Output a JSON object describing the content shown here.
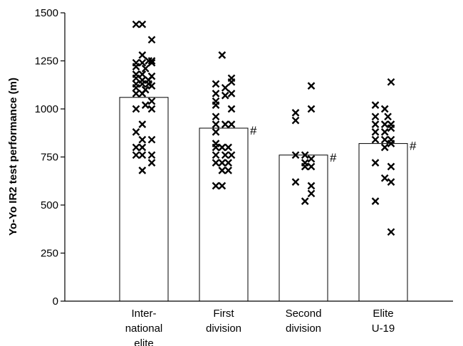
{
  "chart_data": {
    "type": "bar",
    "ylabel": "Yo-Yo IR2 test performance (m)",
    "ylim": [
      0,
      1500
    ],
    "yticks": [
      0,
      250,
      500,
      750,
      1000,
      1250,
      1500
    ],
    "grid": false,
    "marker_color": "#000000",
    "categories": [
      {
        "lines": [
          "Inter-",
          "national",
          "elite"
        ]
      },
      {
        "lines": [
          "First",
          "division"
        ]
      },
      {
        "lines": [
          "Second",
          "division"
        ]
      },
      {
        "lines": [
          "Elite",
          "U-19"
        ]
      }
    ],
    "values": [
      1060,
      900,
      760,
      820
    ],
    "significance": [
      "",
      "#",
      "#",
      "#"
    ],
    "points": [
      [
        [
          -0.25,
          1440
        ],
        [
          -0.05,
          1440
        ],
        [
          0.25,
          1360
        ],
        [
          -0.05,
          1280
        ],
        [
          0.15,
          1250
        ],
        [
          0.25,
          1250
        ],
        [
          -0.25,
          1240
        ],
        [
          -0.05,
          1240
        ],
        [
          0.25,
          1240
        ],
        [
          -0.25,
          1220
        ],
        [
          0.05,
          1210
        ],
        [
          -0.25,
          1180
        ],
        [
          -0.05,
          1180
        ],
        [
          0.25,
          1170
        ],
        [
          -0.25,
          1160
        ],
        [
          -0.05,
          1150
        ],
        [
          0.15,
          1150
        ],
        [
          -0.25,
          1130
        ],
        [
          -0.05,
          1130
        ],
        [
          0.15,
          1130
        ],
        [
          0.25,
          1120
        ],
        [
          -0.25,
          1110
        ],
        [
          0.05,
          1100
        ],
        [
          -0.25,
          1080
        ],
        [
          -0.05,
          1080
        ],
        [
          0.25,
          1040
        ],
        [
          0.05,
          1020
        ],
        [
          -0.25,
          1000
        ],
        [
          0.25,
          1000
        ],
        [
          -0.05,
          920
        ],
        [
          -0.25,
          880
        ],
        [
          0.25,
          840
        ],
        [
          -0.05,
          840
        ],
        [
          -0.25,
          800
        ],
        [
          -0.05,
          800
        ],
        [
          -0.25,
          760
        ],
        [
          -0.05,
          760
        ],
        [
          0.25,
          760
        ],
        [
          0.25,
          720
        ],
        [
          -0.05,
          680
        ]
      ],
      [
        [
          -0.05,
          1280
        ],
        [
          0.25,
          1160
        ],
        [
          0.25,
          1140
        ],
        [
          -0.25,
          1130
        ],
        [
          0.05,
          1110
        ],
        [
          -0.25,
          1080
        ],
        [
          0.25,
          1080
        ],
        [
          0.05,
          1070
        ],
        [
          -0.25,
          1040
        ],
        [
          -0.25,
          1020
        ],
        [
          0.25,
          1000
        ],
        [
          -0.25,
          960
        ],
        [
          -0.25,
          920
        ],
        [
          0.05,
          920
        ],
        [
          0.25,
          920
        ],
        [
          -0.25,
          880
        ],
        [
          -0.25,
          820
        ],
        [
          -0.25,
          800
        ],
        [
          -0.05,
          800
        ],
        [
          0.15,
          800
        ],
        [
          -0.25,
          760
        ],
        [
          0.05,
          760
        ],
        [
          0.25,
          760
        ],
        [
          -0.25,
          720
        ],
        [
          -0.05,
          720
        ],
        [
          0.15,
          720
        ],
        [
          -0.05,
          680
        ],
        [
          0.15,
          680
        ],
        [
          -0.25,
          600
        ],
        [
          -0.05,
          600
        ]
      ],
      [
        [
          0.25,
          1120
        ],
        [
          -0.25,
          980
        ],
        [
          0.25,
          1000
        ],
        [
          -0.25,
          940
        ],
        [
          -0.25,
          760
        ],
        [
          0.05,
          760
        ],
        [
          0.25,
          740
        ],
        [
          0.05,
          720
        ],
        [
          0.05,
          700
        ],
        [
          0.25,
          700
        ],
        [
          -0.25,
          620
        ],
        [
          0.25,
          600
        ],
        [
          0.25,
          560
        ],
        [
          0.05,
          520
        ]
      ],
      [
        [
          0.25,
          1140
        ],
        [
          -0.25,
          1020
        ],
        [
          0.05,
          1000
        ],
        [
          -0.25,
          960
        ],
        [
          0.15,
          960
        ],
        [
          -0.25,
          920
        ],
        [
          0.05,
          920
        ],
        [
          0.25,
          920
        ],
        [
          -0.25,
          880
        ],
        [
          0.05,
          880
        ],
        [
          0.25,
          900
        ],
        [
          -0.25,
          840
        ],
        [
          0.05,
          840
        ],
        [
          0.25,
          840
        ],
        [
          0.25,
          820
        ],
        [
          0.05,
          800
        ],
        [
          -0.25,
          720
        ],
        [
          0.25,
          700
        ],
        [
          0.05,
          640
        ],
        [
          0.25,
          620
        ],
        [
          -0.25,
          520
        ],
        [
          0.25,
          360
        ]
      ]
    ]
  }
}
